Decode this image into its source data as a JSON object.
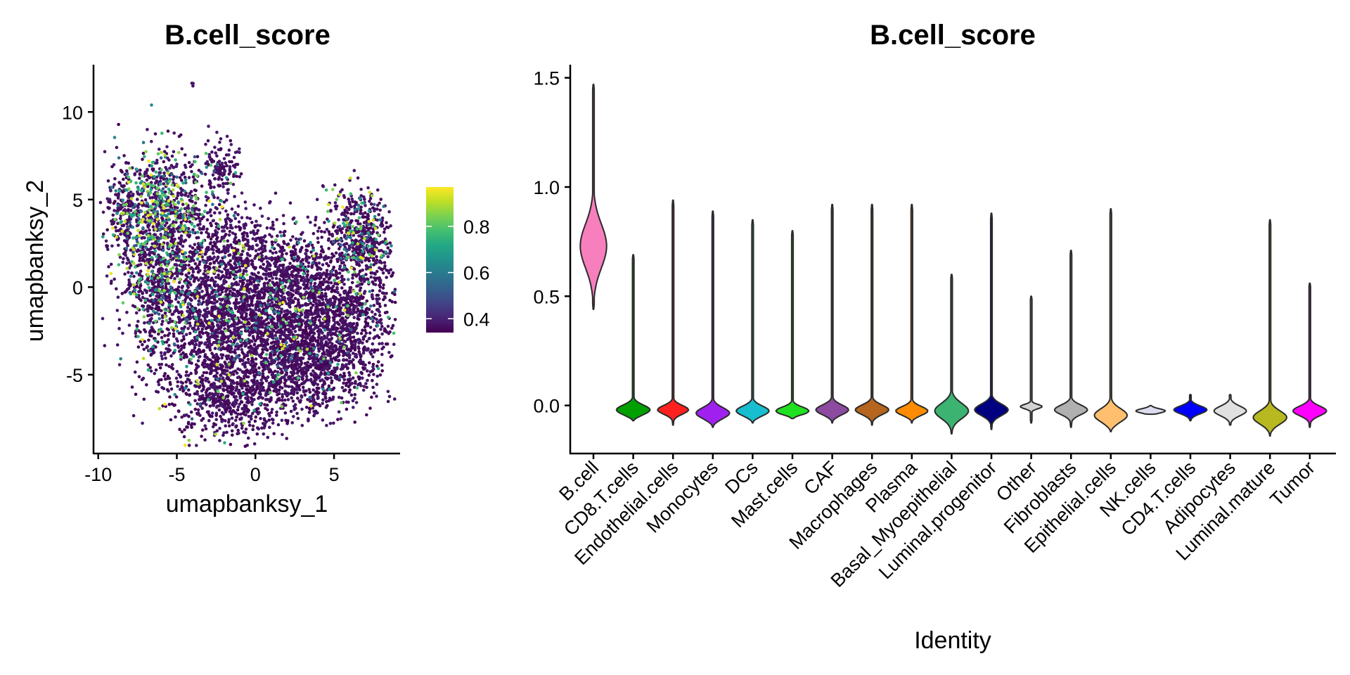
{
  "chart_data": [
    {
      "type": "scatter",
      "title": "B.cell_score",
      "xlabel": "umapbanksy_1",
      "ylabel": "umapbanksy_2",
      "xlim": [
        -10.3,
        9.2
      ],
      "ylim": [
        -9.5,
        12.7
      ],
      "x_ticks": [
        -10,
        -5,
        0,
        5
      ],
      "x_tick_labels": [
        "-10",
        "-5",
        "0",
        "5"
      ],
      "y_ticks": [
        -5,
        0,
        5,
        10
      ],
      "y_tick_labels": [
        "-5",
        "0",
        "5",
        "10"
      ],
      "color_scale": {
        "name": "viridis",
        "min": 0.34,
        "max": 0.97,
        "ticks": [
          0.4,
          0.6,
          0.8
        ],
        "tick_labels": [
          "0.4",
          "0.6",
          "0.8"
        ],
        "colors": [
          "#440154",
          "#482475",
          "#414487",
          "#355f8d",
          "#2a788e",
          "#21918c",
          "#22a884",
          "#44bf70",
          "#7ad151",
          "#bddf26",
          "#fde725"
        ]
      },
      "legend": "right",
      "grid": false,
      "clusters": [
        {
          "x": -6.0,
          "y": 4.5,
          "sx": 1.4,
          "sy": 1.8,
          "n": 700,
          "hi": 0.32
        },
        {
          "x": -6.2,
          "y": 0.5,
          "sx": 1.2,
          "sy": 2.2,
          "n": 600,
          "hi": 0.22
        },
        {
          "x": -2.5,
          "y": -1.5,
          "sx": 2.2,
          "sy": 2.2,
          "n": 1100,
          "hi": 0.08
        },
        {
          "x": 1.5,
          "y": -2.5,
          "sx": 2.6,
          "sy": 1.8,
          "n": 1300,
          "hi": 0.05
        },
        {
          "x": 5.5,
          "y": -1.5,
          "sx": 2.0,
          "sy": 1.8,
          "n": 900,
          "hi": 0.04
        },
        {
          "x": 6.6,
          "y": 3.0,
          "sx": 1.1,
          "sy": 1.3,
          "n": 500,
          "hi": 0.18
        },
        {
          "x": -1.5,
          "y": -6.2,
          "sx": 2.0,
          "sy": 1.2,
          "n": 700,
          "hi": 0.03
        },
        {
          "x": 3.5,
          "y": -5.0,
          "sx": 1.8,
          "sy": 1.2,
          "n": 500,
          "hi": 0.03
        },
        {
          "x": -1.5,
          "y": 2.2,
          "sx": 1.5,
          "sy": 1.5,
          "n": 400,
          "hi": 0.05
        },
        {
          "x": 2.5,
          "y": 1.0,
          "sx": 1.5,
          "sy": 1.2,
          "n": 350,
          "hi": 0.05
        },
        {
          "x": -8.5,
          "y": 4.0,
          "sx": 0.5,
          "sy": 1.6,
          "n": 180,
          "hi": 0.15
        },
        {
          "x": -2.2,
          "y": 6.8,
          "sx": 0.5,
          "sy": 0.8,
          "n": 120,
          "hi": 0.08
        },
        {
          "x": -4.0,
          "y": 11.6,
          "sx": 0.05,
          "sy": 0.05,
          "n": 3,
          "hi": 0.0
        }
      ]
    },
    {
      "type": "violin",
      "title": "B.cell_score",
      "xlabel": "Identity",
      "ylabel": "",
      "ylim": [
        -0.22,
        1.56
      ],
      "y_ticks": [
        0.0,
        0.5,
        1.0,
        1.5
      ],
      "y_tick_labels": [
        "0.0",
        "0.5",
        "1.0",
        "1.5"
      ],
      "categories": [
        "B.cell",
        "CD8.T.cells",
        "Endothelial.cells",
        "Monocytes",
        "DCs",
        "Mast.cells",
        "CAF",
        "Macrophages",
        "Plasma",
        "Basal_Myoepithelial",
        "Luminal.progenitor",
        "Other",
        "Fibroblasts",
        "Epithelial.cells",
        "NK.cells",
        "CD4.T.cells",
        "Adipocytes",
        "Luminal.mature",
        "Tumor"
      ],
      "colors": [
        "#f77fbe",
        "#00a000",
        "#ff2020",
        "#a020f0",
        "#17becf",
        "#20e020",
        "#8c4aa0",
        "#b5651d",
        "#ff8c00",
        "#3cb371",
        "#000080",
        "#d3d3d3",
        "#b0b0b0",
        "#ffbf6f",
        "#dcdcf0",
        "#0000ff",
        "#e0e0e0",
        "#b8b820",
        "#ff00ff"
      ],
      "violins": [
        {
          "min": 0.44,
          "max": 1.47,
          "center": 0.73,
          "halfwidth": 0.72,
          "spread": 0.1
        },
        {
          "min": -0.07,
          "max": 0.69,
          "center": -0.02,
          "halfwidth": 0.92,
          "spread": 0.022
        },
        {
          "min": -0.09,
          "max": 0.94,
          "center": -0.02,
          "halfwidth": 0.85,
          "spread": 0.02
        },
        {
          "min": -0.1,
          "max": 0.89,
          "center": -0.035,
          "halfwidth": 0.92,
          "spread": 0.025
        },
        {
          "min": -0.08,
          "max": 0.85,
          "center": -0.025,
          "halfwidth": 0.9,
          "spread": 0.022
        },
        {
          "min": -0.06,
          "max": 0.8,
          "center": -0.025,
          "halfwidth": 0.9,
          "spread": 0.018
        },
        {
          "min": -0.08,
          "max": 0.92,
          "center": -0.02,
          "halfwidth": 0.9,
          "spread": 0.022
        },
        {
          "min": -0.09,
          "max": 0.92,
          "center": -0.02,
          "halfwidth": 0.92,
          "spread": 0.022
        },
        {
          "min": -0.08,
          "max": 0.92,
          "center": -0.025,
          "halfwidth": 0.88,
          "spread": 0.02
        },
        {
          "min": -0.13,
          "max": 0.6,
          "center": -0.025,
          "halfwidth": 0.92,
          "spread": 0.035
        },
        {
          "min": -0.11,
          "max": 0.88,
          "center": -0.02,
          "halfwidth": 0.92,
          "spread": 0.026
        },
        {
          "min": -0.08,
          "max": 0.5,
          "center": -0.005,
          "halfwidth": 0.6,
          "spread": 0.01
        },
        {
          "min": -0.1,
          "max": 0.71,
          "center": -0.02,
          "halfwidth": 0.9,
          "spread": 0.022
        },
        {
          "min": -0.12,
          "max": 0.9,
          "center": -0.045,
          "halfwidth": 0.9,
          "spread": 0.03
        },
        {
          "min": -0.04,
          "max": 0.0,
          "center": -0.025,
          "halfwidth": 0.8,
          "spread": 0.01
        },
        {
          "min": -0.07,
          "max": 0.05,
          "center": -0.02,
          "halfwidth": 0.9,
          "spread": 0.018
        },
        {
          "min": -0.09,
          "max": 0.05,
          "center": -0.025,
          "halfwidth": 0.88,
          "spread": 0.022
        },
        {
          "min": -0.14,
          "max": 0.85,
          "center": -0.055,
          "halfwidth": 0.92,
          "spread": 0.03
        },
        {
          "min": -0.1,
          "max": 0.56,
          "center": -0.025,
          "halfwidth": 0.92,
          "spread": 0.022
        }
      ]
    }
  ]
}
